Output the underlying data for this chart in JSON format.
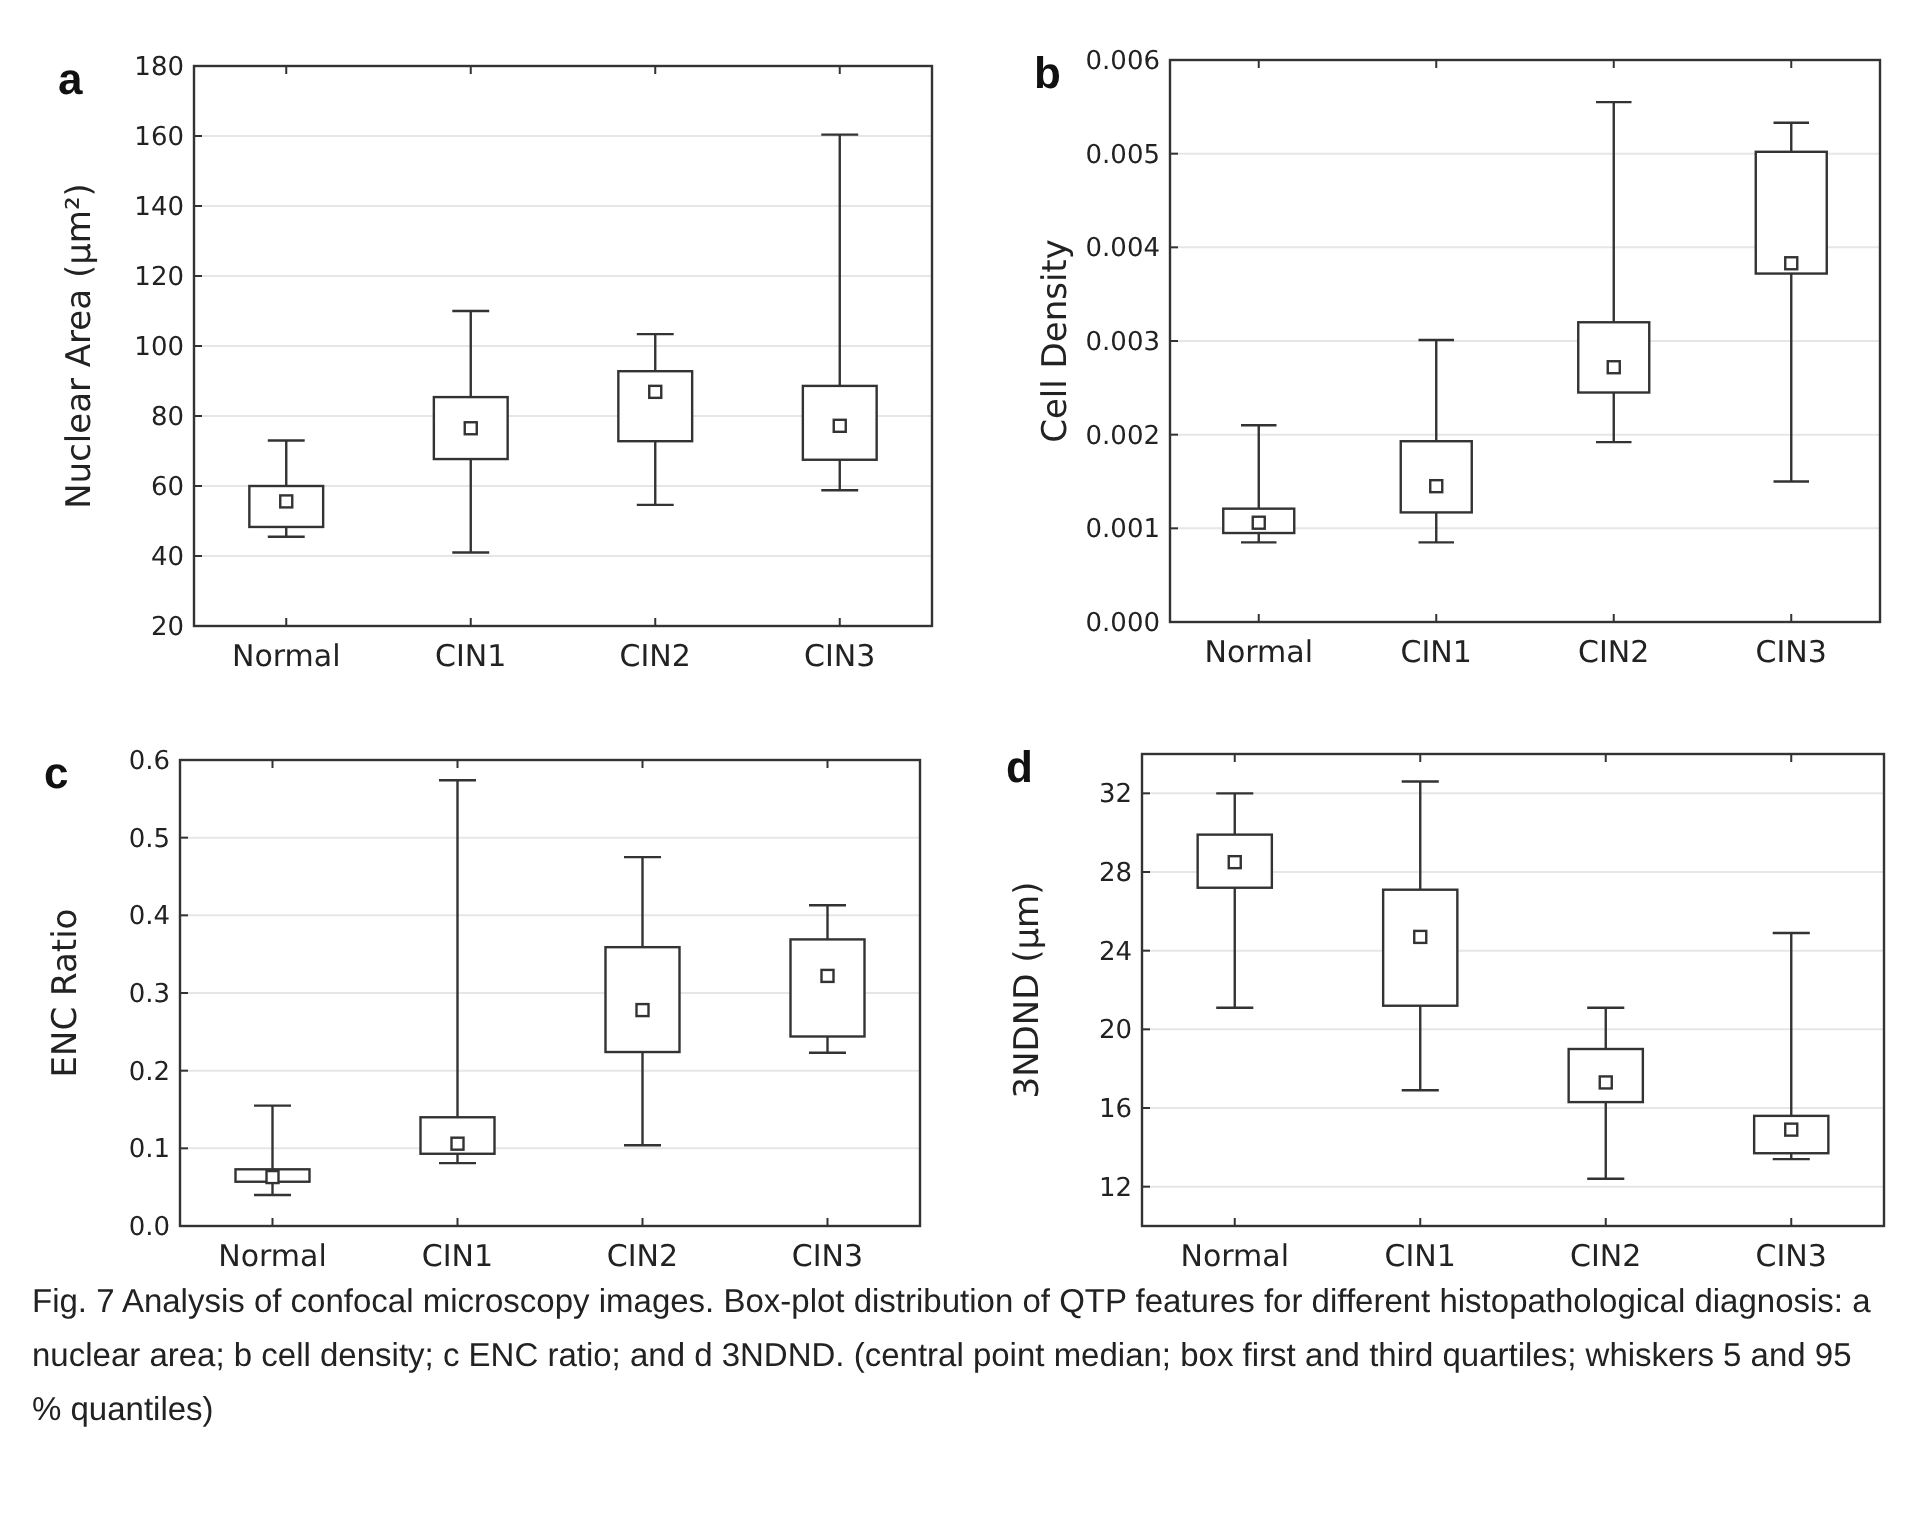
{
  "chart_data": [
    {
      "type": "box",
      "title": "a",
      "ylabel": "Nuclear Area (μm²)",
      "categories": [
        "Normal",
        "CIN1",
        "CIN2",
        "CIN3"
      ],
      "ylim": [
        20,
        180
      ],
      "yticks": [
        20,
        40,
        60,
        80,
        100,
        120,
        140,
        160,
        180
      ],
      "grid": "y",
      "marker": "square",
      "boxes": [
        {
          "low": 45.5,
          "q1": 48.3,
          "median": 55.6,
          "q3": 60,
          "high": 73
        },
        {
          "low": 41,
          "q1": 67.7,
          "median": 76.5,
          "q3": 85.4,
          "high": 110
        },
        {
          "low": 54.6,
          "q1": 72.8,
          "median": 86.9,
          "q3": 92.8,
          "high": 103.4
        },
        {
          "low": 58.8,
          "q1": 67.5,
          "median": 77.2,
          "q3": 88.6,
          "high": 160.4
        }
      ]
    },
    {
      "type": "box",
      "title": "b",
      "ylabel": "Cell Density",
      "categories": [
        "Normal",
        "CIN1",
        "CIN2",
        "CIN3"
      ],
      "ylim": [
        0,
        0.006
      ],
      "yticks": [
        {
          "value": 0,
          "label": "0.000"
        },
        {
          "value": 0.001,
          "label": "0.001"
        },
        {
          "value": 0.002,
          "label": "0.002"
        },
        {
          "value": 0.003,
          "label": "0.003"
        },
        {
          "value": 0.004,
          "label": "0.004"
        },
        {
          "value": 0.005,
          "label": "0.005"
        },
        {
          "value": 0.006,
          "label": "0.006"
        }
      ],
      "grid": "y",
      "marker": "square",
      "boxes": [
        {
          "low": 0.00085,
          "q1": 0.00095,
          "median": 0.00106,
          "q3": 0.00121,
          "high": 0.0021
        },
        {
          "low": 0.00085,
          "q1": 0.00117,
          "median": 0.00145,
          "q3": 0.00193,
          "high": 0.00301
        },
        {
          "low": 0.00192,
          "q1": 0.00245,
          "median": 0.00272,
          "q3": 0.0032,
          "high": 0.00555
        },
        {
          "low": 0.0015,
          "q1": 0.00372,
          "median": 0.00383,
          "q3": 0.00502,
          "high": 0.00533
        }
      ]
    },
    {
      "type": "box",
      "title": "c",
      "ylabel": "ENC Ratio",
      "categories": [
        "Normal",
        "CIN1",
        "CIN2",
        "CIN3"
      ],
      "ylim": [
        0,
        0.6
      ],
      "yticks": [
        {
          "value": 0,
          "label": "0.0"
        },
        0.1,
        0.2,
        0.3,
        0.4,
        0.5,
        0.6
      ],
      "grid": "y",
      "marker": "square",
      "boxes": [
        {
          "low": 0.04,
          "q1": 0.057,
          "median": 0.063,
          "q3": 0.073,
          "high": 0.155
        },
        {
          "low": 0.081,
          "q1": 0.093,
          "median": 0.106,
          "q3": 0.14,
          "high": 0.574
        },
        {
          "low": 0.104,
          "q1": 0.224,
          "median": 0.278,
          "q3": 0.359,
          "high": 0.475
        },
        {
          "low": 0.223,
          "q1": 0.244,
          "median": 0.322,
          "q3": 0.369,
          "high": 0.413
        }
      ]
    },
    {
      "type": "box",
      "title": "d",
      "ylabel": "3NDND (μm)",
      "categories": [
        "Normal",
        "CIN1",
        "CIN2",
        "CIN3"
      ],
      "ylim": [
        10,
        34
      ],
      "yticks": [
        12,
        16,
        20,
        24,
        28,
        32
      ],
      "grid": "y",
      "marker": "square",
      "boxes": [
        {
          "low": 21.1,
          "q1": 27.2,
          "median": 28.5,
          "q3": 29.9,
          "high": 32
        },
        {
          "low": 16.9,
          "q1": 21.2,
          "median": 24.7,
          "q3": 27.1,
          "high": 32.6
        },
        {
          "low": 12.4,
          "q1": 16.3,
          "median": 17.3,
          "q3": 19,
          "high": 21.1
        },
        {
          "low": 13.4,
          "q1": 13.7,
          "median": 14.9,
          "q3": 15.6,
          "high": 24.9
        }
      ],
      "annotations": [
        "Fig. 7  Analysis of confocal microscopy images. Box-plot distribution of QTP features for different histopathological diagnosis: a nuclear area; b cell density; c ENC ratio; and d 3NDND. (central point median; box first and third quartiles; whiskers 5 and 95 % quantiles)"
      ]
    }
  ]
}
